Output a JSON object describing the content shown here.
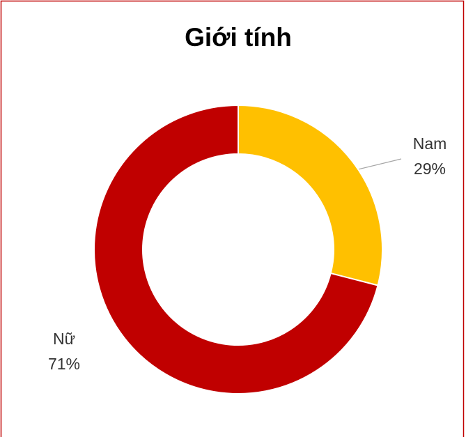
{
  "chart_data": {
    "type": "donut",
    "title": "Giới tính",
    "categories": [
      "Nam",
      "Nữ"
    ],
    "values": [
      29,
      71
    ],
    "value_labels": [
      "29%",
      "71%"
    ],
    "colors": [
      "#ffc000",
      "#c00000"
    ]
  }
}
